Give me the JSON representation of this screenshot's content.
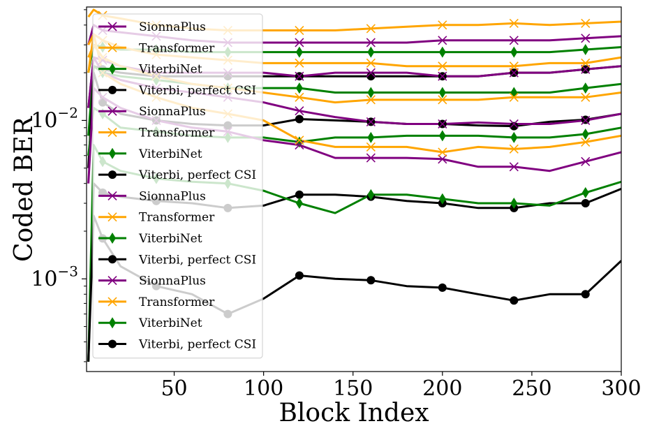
{
  "chart_data": {
    "type": "line",
    "title": "",
    "xlabel": "Block Index",
    "ylabel": "Coded BER",
    "xlim": [
      1,
      300
    ],
    "ylim": [
      0.00026,
      0.052
    ],
    "yscale": "log",
    "grid": false,
    "legend_position": "upper-left",
    "x_ticks": [
      50,
      100,
      150,
      200,
      250,
      300
    ],
    "y_ticks": [
      {
        "value": 0.01,
        "base": "10",
        "exp": "−2"
      },
      {
        "value": 0.001,
        "base": "10",
        "exp": "−3"
      }
    ],
    "series": [
      {
        "name": "SionnaPlus",
        "color": "#800080",
        "marker": "x",
        "x": [
          2,
          5,
          10,
          20,
          40,
          60,
          80,
          100,
          120,
          140,
          160,
          180,
          200,
          220,
          240,
          260,
          280,
          300
        ],
        "y": [
          0.03,
          0.04,
          0.037,
          0.036,
          0.034,
          0.032,
          0.031,
          0.031,
          0.031,
          0.031,
          0.031,
          0.031,
          0.032,
          0.032,
          0.032,
          0.032,
          0.033,
          0.034
        ]
      },
      {
        "name": "Transformer",
        "color": "#FFA500",
        "marker": "x",
        "x": [
          2,
          5,
          10,
          20,
          40,
          60,
          80,
          100,
          120,
          140,
          160,
          180,
          200,
          220,
          240,
          260,
          280,
          300
        ],
        "y": [
          0.045,
          0.05,
          0.046,
          0.044,
          0.04,
          0.038,
          0.037,
          0.037,
          0.037,
          0.037,
          0.038,
          0.039,
          0.04,
          0.04,
          0.041,
          0.04,
          0.041,
          0.042
        ]
      },
      {
        "name": "ViterbiNet",
        "color": "#008000",
        "marker": "d",
        "x": [
          2,
          5,
          10,
          20,
          40,
          60,
          80,
          100,
          120,
          140,
          160,
          180,
          200,
          220,
          240,
          260,
          280,
          300
        ],
        "y": [
          0.02,
          0.03,
          0.029,
          0.028,
          0.028,
          0.027,
          0.027,
          0.027,
          0.027,
          0.027,
          0.027,
          0.027,
          0.027,
          0.027,
          0.027,
          0.027,
          0.028,
          0.029
        ]
      },
      {
        "name": "Viterbi, perfect CSI",
        "color": "#000000",
        "marker": "o",
        "x": [
          2,
          5,
          10,
          20,
          40,
          60,
          80,
          100,
          120,
          140,
          160,
          180,
          200,
          220,
          240,
          260,
          280,
          300
        ],
        "y": [
          0.012,
          0.022,
          0.021,
          0.02,
          0.019,
          0.019,
          0.019,
          0.019,
          0.019,
          0.019,
          0.019,
          0.019,
          0.019,
          0.019,
          0.02,
          0.02,
          0.021,
          0.022
        ]
      },
      {
        "name": "SionnaPlus",
        "color": "#800080",
        "marker": "x",
        "x": [
          2,
          5,
          10,
          20,
          40,
          60,
          80,
          100,
          120,
          140,
          160,
          180,
          200,
          220,
          240,
          260,
          280,
          300
        ],
        "y": [
          0.012,
          0.025,
          0.024,
          0.022,
          0.02,
          0.02,
          0.02,
          0.02,
          0.019,
          0.02,
          0.02,
          0.02,
          0.019,
          0.019,
          0.02,
          0.02,
          0.021,
          0.022
        ]
      },
      {
        "name": "Transformer",
        "color": "#FFA500",
        "marker": "x",
        "x": [
          2,
          5,
          10,
          20,
          40,
          60,
          80,
          100,
          120,
          140,
          160,
          180,
          200,
          220,
          240,
          260,
          280,
          300
        ],
        "y": [
          0.03,
          0.035,
          0.032,
          0.029,
          0.026,
          0.025,
          0.024,
          0.023,
          0.023,
          0.023,
          0.023,
          0.022,
          0.022,
          0.022,
          0.022,
          0.023,
          0.023,
          0.025
        ]
      },
      {
        "name": "ViterbiNet",
        "color": "#008000",
        "marker": "d",
        "x": [
          2,
          5,
          10,
          20,
          40,
          60,
          80,
          100,
          120,
          140,
          160,
          180,
          200,
          220,
          240,
          260,
          280,
          300
        ],
        "y": [
          0.008,
          0.022,
          0.02,
          0.019,
          0.018,
          0.017,
          0.016,
          0.016,
          0.016,
          0.015,
          0.015,
          0.015,
          0.015,
          0.015,
          0.015,
          0.015,
          0.016,
          0.017
        ]
      },
      {
        "name": "Viterbi, perfect CSI",
        "color": "#000000",
        "marker": "o",
        "x": [
          2,
          5,
          10,
          20,
          40,
          60,
          80,
          100,
          120,
          140,
          160,
          180,
          200,
          220,
          240,
          260,
          280,
          300
        ],
        "y": [
          0.005,
          0.02,
          0.013,
          0.011,
          0.01,
          0.0095,
          0.0093,
          0.0093,
          0.0102,
          0.01,
          0.0098,
          0.0095,
          0.0095,
          0.0093,
          0.0092,
          0.0098,
          0.0101,
          0.011
        ]
      },
      {
        "name": "SionnaPlus",
        "color": "#800080",
        "marker": "x",
        "x": [
          2,
          5,
          10,
          20,
          40,
          60,
          80,
          100,
          120,
          140,
          160,
          180,
          200,
          220,
          240,
          260,
          280,
          300
        ],
        "y": [
          0.012,
          0.025,
          0.02,
          0.018,
          0.016,
          0.015,
          0.014,
          0.013,
          0.0115,
          0.0105,
          0.0098,
          0.0095,
          0.0095,
          0.0097,
          0.0095,
          0.0095,
          0.01,
          0.011
        ]
      },
      {
        "name": "Transformer",
        "color": "#FFA500",
        "marker": "x",
        "x": [
          2,
          5,
          10,
          20,
          40,
          60,
          80,
          100,
          120,
          140,
          160,
          180,
          200,
          220,
          240,
          260,
          280,
          300
        ],
        "y": [
          0.025,
          0.03,
          0.025,
          0.022,
          0.019,
          0.017,
          0.016,
          0.015,
          0.014,
          0.013,
          0.0135,
          0.0135,
          0.0135,
          0.0135,
          0.014,
          0.014,
          0.014,
          0.015
        ]
      },
      {
        "name": "ViterbiNet",
        "color": "#008000",
        "marker": "d",
        "x": [
          2,
          5,
          10,
          20,
          40,
          60,
          80,
          100,
          120,
          140,
          160,
          180,
          200,
          220,
          240,
          260,
          280,
          300
        ],
        "y": [
          0.006,
          0.012,
          0.011,
          0.009,
          0.0085,
          0.008,
          0.0078,
          0.0078,
          0.0073,
          0.0078,
          0.0078,
          0.008,
          0.008,
          0.008,
          0.0078,
          0.0078,
          0.0082,
          0.009
        ]
      },
      {
        "name": "Viterbi, perfect CSI",
        "color": "#000000",
        "marker": "o",
        "x": [
          2,
          5,
          10,
          20,
          40,
          60,
          80,
          100,
          120,
          140,
          160,
          180,
          200,
          220,
          240,
          260,
          280,
          300
        ],
        "y": [
          0.0003,
          0.004,
          0.0035,
          0.0033,
          0.0031,
          0.003,
          0.0028,
          0.0029,
          0.0034,
          0.0034,
          0.0033,
          0.0031,
          0.003,
          0.0028,
          0.0028,
          0.003,
          0.003,
          0.0037
        ]
      },
      {
        "name": "SionnaPlus",
        "color": "#800080",
        "marker": "x",
        "x": [
          2,
          5,
          10,
          20,
          40,
          60,
          80,
          100,
          120,
          140,
          160,
          180,
          200,
          220,
          240,
          260,
          280,
          300
        ],
        "y": [
          0.004,
          0.016,
          0.014,
          0.012,
          0.01,
          0.009,
          0.0085,
          0.0075,
          0.007,
          0.0058,
          0.0058,
          0.0058,
          0.0057,
          0.0051,
          0.0051,
          0.0048,
          0.0055,
          0.0063
        ]
      },
      {
        "name": "Transformer",
        "color": "#FFA500",
        "marker": "x",
        "x": [
          2,
          5,
          10,
          20,
          40,
          60,
          80,
          100,
          120,
          140,
          160,
          180,
          200,
          220,
          240,
          260,
          280,
          300
        ],
        "y": [
          0.02,
          0.035,
          0.02,
          0.017,
          0.014,
          0.012,
          0.011,
          0.01,
          0.0075,
          0.0068,
          0.0068,
          0.0068,
          0.0063,
          0.0068,
          0.0066,
          0.0068,
          0.0073,
          0.008
        ]
      },
      {
        "name": "ViterbiNet",
        "color": "#008000",
        "marker": "d",
        "x": [
          2,
          5,
          10,
          20,
          40,
          60,
          80,
          100,
          120,
          140,
          160,
          180,
          200,
          220,
          240,
          260,
          280,
          300
        ],
        "y": [
          0.0003,
          0.007,
          0.0055,
          0.0048,
          0.0043,
          0.0041,
          0.004,
          0.0036,
          0.003,
          0.0026,
          0.0034,
          0.0034,
          0.0032,
          0.003,
          0.003,
          0.0029,
          0.0035,
          0.0041
        ]
      },
      {
        "name": "Viterbi, perfect CSI",
        "color": "#000000",
        "marker": "o",
        "x": [
          2,
          5,
          10,
          20,
          40,
          60,
          80,
          100,
          120,
          140,
          160,
          180,
          200,
          220,
          240,
          260,
          280,
          300
        ],
        "y": [
          0.0003,
          0.0025,
          0.0018,
          0.0012,
          0.0009,
          0.0008,
          0.0006,
          0.00075,
          0.00105,
          0.001,
          0.00098,
          0.0009,
          0.00088,
          0.0008,
          0.00073,
          0.0008,
          0.0008,
          0.0013
        ]
      }
    ]
  }
}
